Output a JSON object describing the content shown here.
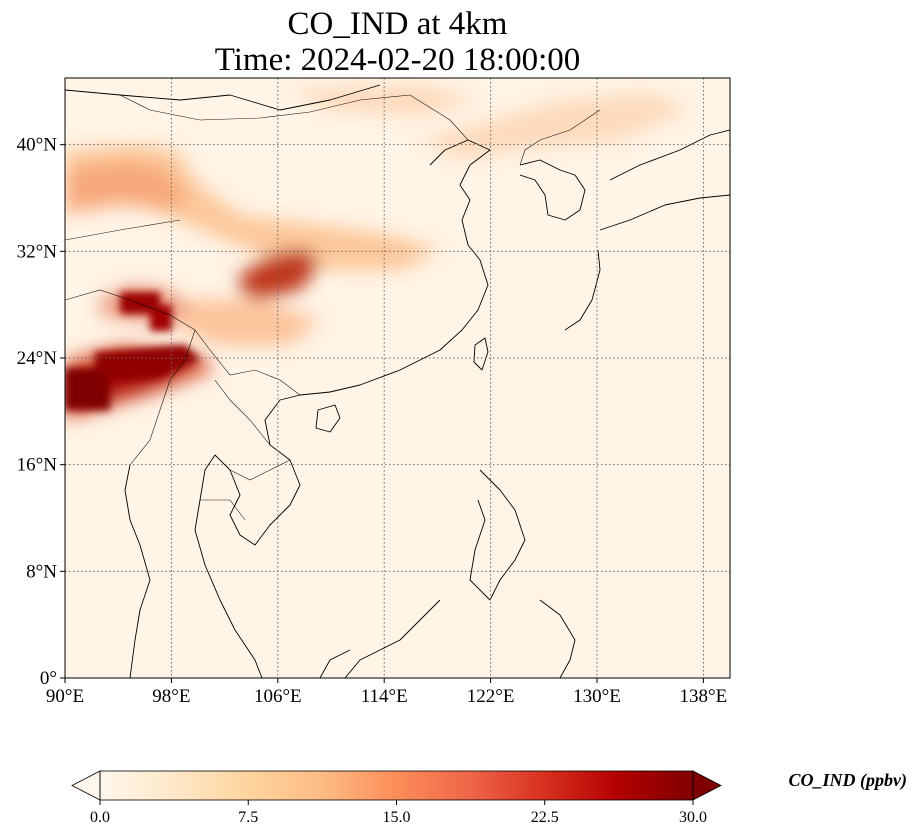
{
  "title": {
    "line1": "CO_IND at 4km",
    "line2": "Time: 2024-02-20 18:00:00"
  },
  "map": {
    "lon_range": [
      90,
      140
    ],
    "lat_range": [
      0,
      45
    ],
    "gridline_style": "dotted",
    "coastlines": true,
    "borders": true,
    "x_ticks": [
      {
        "lon": 90,
        "label": "90°E"
      },
      {
        "lon": 98,
        "label": "98°E"
      },
      {
        "lon": 106,
        "label": "106°E"
      },
      {
        "lon": 114,
        "label": "114°E"
      },
      {
        "lon": 122,
        "label": "122°E"
      },
      {
        "lon": 130,
        "label": "130°E"
      },
      {
        "lon": 138,
        "label": "138°E"
      }
    ],
    "y_ticks": [
      {
        "lat": 0,
        "label": "0°"
      },
      {
        "lat": 8,
        "label": "8°N"
      },
      {
        "lat": 16,
        "label": "16°N"
      },
      {
        "lat": 24,
        "label": "24°N"
      },
      {
        "lat": 32,
        "label": "32°N"
      },
      {
        "lat": 40,
        "label": "40°N"
      }
    ]
  },
  "colorbar": {
    "label": "CO_IND (ppbv)",
    "min": 0,
    "max": 30,
    "extend": "both",
    "colormap": "OrRd",
    "colors": [
      "#fff7ec",
      "#fee8c8",
      "#fdd49e",
      "#fdbb84",
      "#fc8d59",
      "#ef6548",
      "#d7301f",
      "#b30000",
      "#7f0000"
    ],
    "ticks": [
      {
        "value": 0,
        "label": "0.0"
      },
      {
        "value": 7.5,
        "label": "7.5"
      },
      {
        "value": 15,
        "label": "15.0"
      },
      {
        "value": 22.5,
        "label": "22.5"
      },
      {
        "value": 30,
        "label": "30.0"
      }
    ]
  }
}
